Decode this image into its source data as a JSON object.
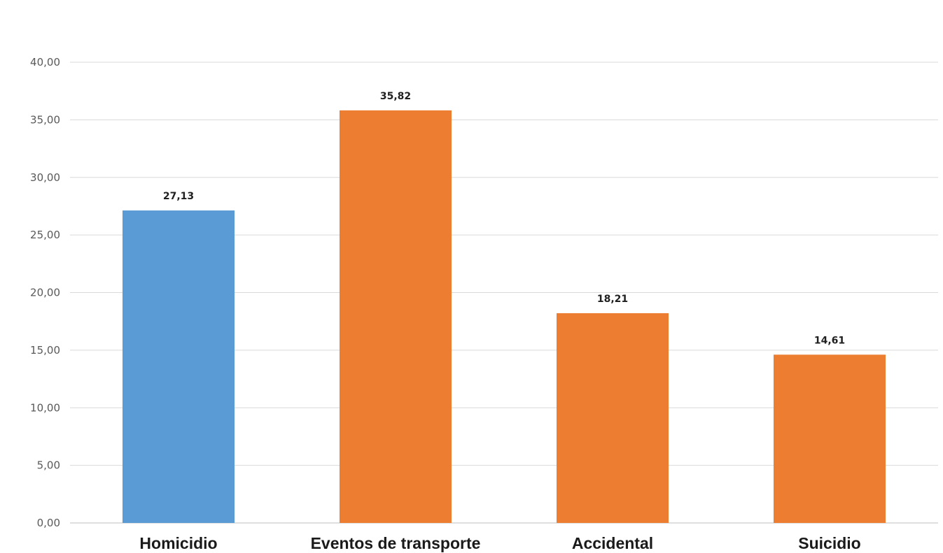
{
  "chart_data": {
    "type": "bar",
    "categories": [
      "Homicidio",
      "Eventos de transporte",
      "Accidental",
      "Suicidio"
    ],
    "values": [
      27.13,
      35.82,
      18.21,
      14.61
    ],
    "value_labels": [
      "27,13",
      "35,82",
      "18,21",
      "14,61"
    ],
    "bar_colors": [
      "#5b9bd5",
      "#ed7d31",
      "#ed7d31",
      "#ed7d31"
    ],
    "ylim": [
      0,
      40
    ],
    "yticks": [
      0,
      5,
      10,
      15,
      20,
      25,
      30,
      35,
      40
    ],
    "ytick_labels": [
      "0,00",
      "5,00",
      "10,00",
      "15,00",
      "20,00",
      "25,00",
      "30,00",
      "35,00",
      "40,00"
    ],
    "grid": true,
    "title": "",
    "xlabel": "",
    "ylabel": ""
  }
}
